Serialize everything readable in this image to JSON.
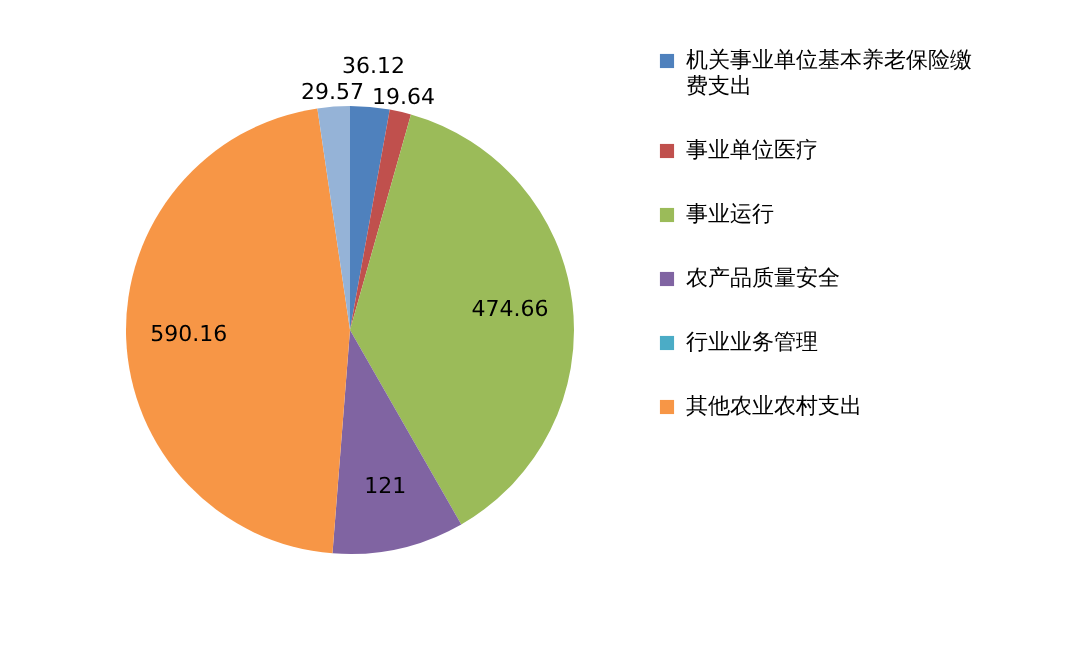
{
  "chart_data": {
    "type": "pie",
    "categories": [
      "机关事业单位基本养老保险缴费支出",
      "事业单位医疗",
      "事业运行",
      "农产品质量安全",
      "行业业务管理",
      "其他农业农村支出",
      null
    ],
    "values": [
      36.12,
      19.64,
      474.66,
      121,
      0,
      590.16,
      29.57
    ],
    "value_labels": [
      "36.12",
      "19.64",
      "474.66",
      "121",
      null,
      "590.16",
      "29.57"
    ],
    "colors": [
      "#4f81bd",
      "#c0504d",
      "#9bbb59",
      "#8064a2",
      "#4bacc6",
      "#f79646",
      "#95b3d7"
    ],
    "legend": "right"
  }
}
